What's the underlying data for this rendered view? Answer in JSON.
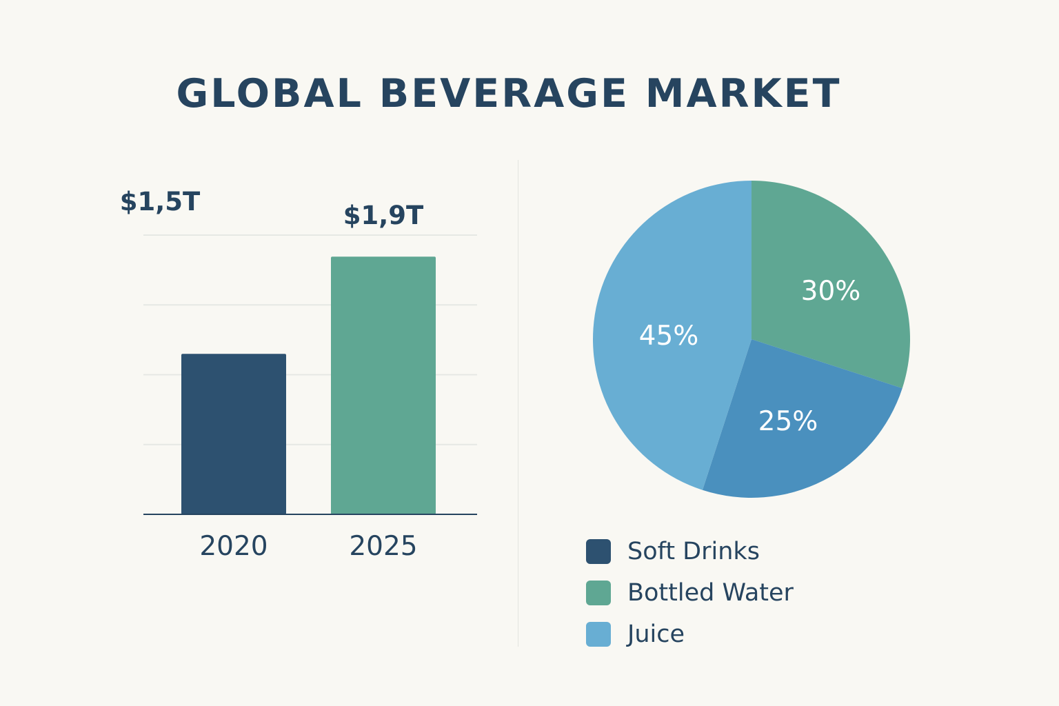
{
  "title": "GLOBAL BEVERAGE MARKET",
  "colors": {
    "background": "#f9f8f3",
    "text": "#26445f",
    "soft_drinks": "#2d5170",
    "bottled_water": "#5fa793",
    "juice": "#68aed3",
    "slice_mid": "#4a90be",
    "grid": "#e6e8e4"
  },
  "chart_data": [
    {
      "type": "bar",
      "categories": [
        "2020",
        "2025"
      ],
      "values": [
        1.5,
        1.9
      ],
      "value_labels": [
        "$1,5T",
        "$1,9T"
      ],
      "bar_colors": [
        "#2d5170",
        "#5fa793"
      ],
      "title": "",
      "xlabel": "",
      "ylabel": "",
      "ylim": [
        0,
        2.0
      ],
      "grid": true
    },
    {
      "type": "pie",
      "slices": [
        {
          "label": "30%",
          "value": 30,
          "color": "#5fa793"
        },
        {
          "label": "25%",
          "value": 25,
          "color": "#4a90be"
        },
        {
          "label": "45%",
          "value": 45,
          "color": "#68aed3"
        }
      ],
      "legend": [
        "Soft Drinks",
        "Bottled Water",
        "Juice"
      ],
      "legend_colors": [
        "#2d5170",
        "#5fa793",
        "#68aed3"
      ],
      "legend_position": "bottom"
    }
  ]
}
